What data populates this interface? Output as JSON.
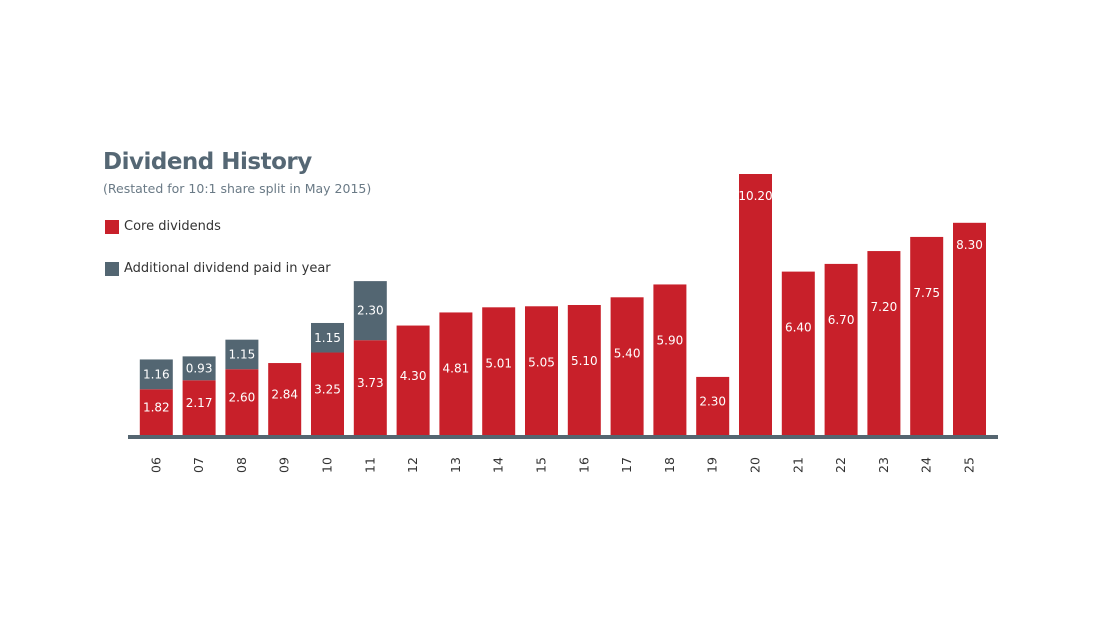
{
  "chart_data": {
    "type": "bar",
    "stacked": true,
    "title": "Dividend History",
    "subtitle": "(Restated for 10:1 share split in May 2015)",
    "categories": [
      "06",
      "07",
      "08",
      "09",
      "10",
      "11",
      "12",
      "13",
      "14",
      "15",
      "16",
      "17",
      "18",
      "19",
      "20",
      "21",
      "22",
      "23",
      "24",
      "25"
    ],
    "series": [
      {
        "name": "Core dividends",
        "color": "#c8202a",
        "values": [
          1.82,
          2.17,
          2.6,
          2.84,
          3.25,
          3.73,
          4.3,
          4.81,
          5.01,
          5.05,
          5.1,
          5.4,
          5.9,
          2.3,
          10.2,
          6.4,
          6.7,
          7.2,
          7.75,
          8.3
        ],
        "labels": [
          "1.82",
          "2.17",
          "2.60",
          "2.84",
          "3.25",
          "3.73",
          "4.30",
          "4.81",
          "5.01",
          "5.05",
          "5.10",
          "5.40",
          "5.90",
          "2.30",
          "10.20",
          "6.40",
          "6.70",
          "7.20",
          "7.75",
          "8.30"
        ]
      },
      {
        "name": "Additional dividend paid in year",
        "color": "#536672",
        "values": [
          1.16,
          0.93,
          1.15,
          null,
          1.15,
          2.3,
          null,
          null,
          null,
          null,
          null,
          null,
          null,
          null,
          null,
          null,
          null,
          null,
          null,
          null
        ],
        "labels": [
          "1.16",
          "0.93",
          "1.15",
          null,
          "1.15",
          "2.30",
          null,
          null,
          null,
          null,
          null,
          null,
          null,
          null,
          null,
          null,
          null,
          null,
          null,
          null
        ]
      }
    ],
    "ylim": [
      0,
      10.2
    ],
    "grid": false,
    "legend": "top-left",
    "axis_color": "#556570"
  }
}
